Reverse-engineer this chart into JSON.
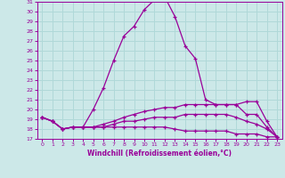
{
  "xlabel": "Windchill (Refroidissement éolien,°C)",
  "xlim": [
    -0.5,
    23.5
  ],
  "ylim": [
    17,
    31
  ],
  "yticks": [
    17,
    18,
    19,
    20,
    21,
    22,
    23,
    24,
    25,
    26,
    27,
    28,
    29,
    30,
    31
  ],
  "xticks": [
    0,
    1,
    2,
    3,
    4,
    5,
    6,
    7,
    8,
    9,
    10,
    11,
    12,
    13,
    14,
    15,
    16,
    17,
    18,
    19,
    20,
    21,
    22,
    23
  ],
  "bg_color": "#cce8e8",
  "line_color": "#990099",
  "grid_color": "#b0d8d8",
  "curves": [
    [
      19.2,
      18.8,
      18.0,
      18.2,
      18.2,
      20.0,
      22.2,
      25.0,
      27.5,
      28.5,
      30.2,
      31.2,
      31.5,
      29.5,
      26.5,
      25.2,
      21.0,
      20.5,
      20.5,
      20.5,
      20.8,
      20.8,
      18.8,
      17.2
    ],
    [
      19.2,
      18.8,
      18.0,
      18.2,
      18.2,
      18.2,
      18.5,
      18.8,
      19.2,
      19.5,
      19.8,
      20.0,
      20.2,
      20.2,
      20.5,
      20.5,
      20.5,
      20.5,
      20.5,
      20.5,
      19.5,
      19.5,
      18.2,
      17.2
    ],
    [
      19.2,
      18.8,
      18.0,
      18.2,
      18.2,
      18.2,
      18.2,
      18.5,
      18.8,
      18.8,
      19.0,
      19.2,
      19.2,
      19.2,
      19.5,
      19.5,
      19.5,
      19.5,
      19.5,
      19.2,
      18.8,
      18.5,
      18.0,
      17.2
    ],
    [
      19.2,
      18.8,
      18.0,
      18.2,
      18.2,
      18.2,
      18.2,
      18.2,
      18.2,
      18.2,
      18.2,
      18.2,
      18.2,
      18.0,
      17.8,
      17.8,
      17.8,
      17.8,
      17.8,
      17.5,
      17.5,
      17.5,
      17.2,
      17.2
    ]
  ]
}
